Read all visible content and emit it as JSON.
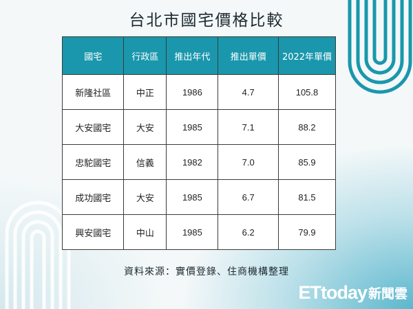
{
  "title": "台北市國宅價格比較",
  "table": {
    "headers": [
      "國宅",
      "行政區",
      "推出年代",
      "推出單價",
      "2022年單價"
    ],
    "rows": [
      [
        "新隆社區",
        "中正",
        "1986",
        "4.7",
        "105.8"
      ],
      [
        "大安國宅",
        "大安",
        "1985",
        "7.1",
        "88.2"
      ],
      [
        "忠駝國宅",
        "信義",
        "1982",
        "7.0",
        "85.9"
      ],
      [
        "成功國宅",
        "大安",
        "1985",
        "6.7",
        "81.5"
      ],
      [
        "興安國宅",
        "中山",
        "1985",
        "6.2",
        "79.9"
      ]
    ]
  },
  "source": "資料來源：實價登錄、住商機構整理",
  "watermark": {
    "latin": "ETtoday",
    "cjk": "新聞雲"
  },
  "colors": {
    "header_bg": "#1a97ac",
    "accent": "#40acc6"
  }
}
